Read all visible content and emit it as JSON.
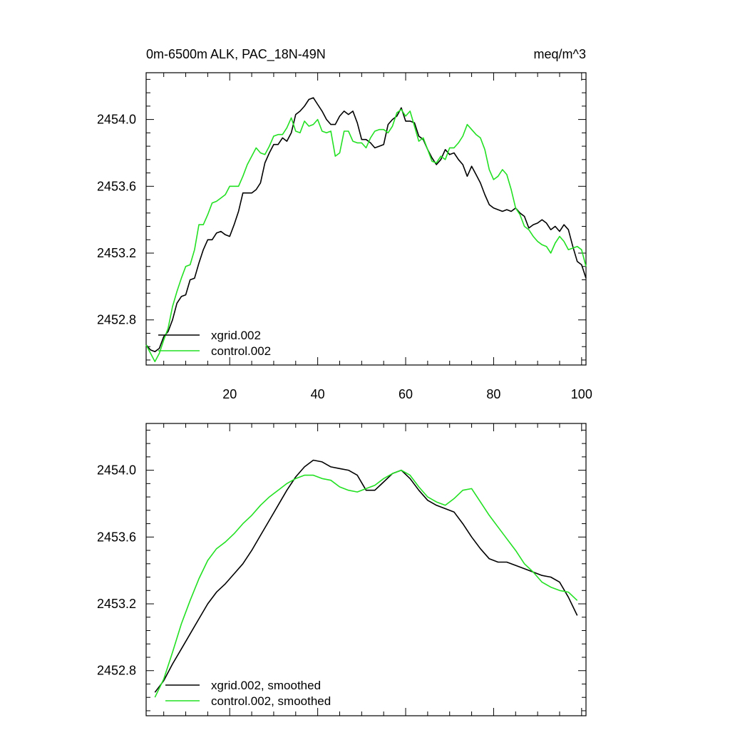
{
  "chart_data": [
    {
      "type": "line",
      "title_left": "0m-6500m ALK, PAC_18N-49N",
      "title_right": "meq/m^3",
      "xlim": [
        1,
        101
      ],
      "ylim": [
        2452.53,
        2454.28
      ],
      "x_ticks": [
        20,
        40,
        60,
        80,
        100
      ],
      "x_tick_labels": [
        "20",
        "40",
        "60",
        "80",
        "100"
      ],
      "y_ticks": [
        2452.8,
        2453.2,
        2453.6,
        2454.0
      ],
      "y_tick_labels": [
        "2452.8",
        "2453.2",
        "2453.6",
        "2454.0"
      ],
      "legend_position": "bottom-left",
      "series": [
        {
          "name": "xgrid.002",
          "color": "#000000",
          "x": [
            1,
            2,
            3,
            4,
            5,
            6,
            7,
            8,
            9,
            10,
            11,
            12,
            13,
            14,
            15,
            16,
            17,
            18,
            19,
            20,
            21,
            22,
            23,
            24,
            25,
            26,
            27,
            28,
            29,
            30,
            31,
            32,
            33,
            34,
            35,
            36,
            37,
            38,
            39,
            40,
            41,
            42,
            43,
            44,
            45,
            46,
            47,
            48,
            49,
            50,
            51,
            52,
            53,
            54,
            55,
            56,
            57,
            58,
            59,
            60,
            61,
            62,
            63,
            64,
            65,
            66,
            67,
            68,
            69,
            70,
            71,
            72,
            73,
            74,
            75,
            76,
            77,
            78,
            79,
            80,
            81,
            82,
            83,
            84,
            85,
            86,
            87,
            88,
            89,
            90,
            91,
            92,
            93,
            94,
            95,
            96,
            97,
            98,
            99,
            100,
            101
          ],
          "y": [
            2452.65,
            2452.62,
            2452.61,
            2452.63,
            2452.7,
            2452.73,
            2452.8,
            2452.9,
            2452.94,
            2452.95,
            2453.04,
            2453.05,
            2453.14,
            2453.22,
            2453.28,
            2453.28,
            2453.32,
            2453.33,
            2453.31,
            2453.3,
            2453.37,
            2453.45,
            2453.56,
            2453.56,
            2453.56,
            2453.58,
            2453.62,
            2453.74,
            2453.8,
            2453.85,
            2453.85,
            2453.89,
            2453.87,
            2453.92,
            2454.03,
            2454.05,
            2454.08,
            2454.12,
            2454.13,
            2454.09,
            2454.05,
            2454.0,
            2453.97,
            2453.97,
            2454.02,
            2454.05,
            2454.03,
            2454.05,
            2453.98,
            2453.88,
            2453.88,
            2453.86,
            2453.83,
            2453.84,
            2453.85,
            2453.97,
            2454.0,
            2454.02,
            2454.07,
            2453.99,
            2453.99,
            2453.98,
            2453.9,
            2453.88,
            2453.82,
            2453.77,
            2453.73,
            2453.76,
            2453.82,
            2453.79,
            2453.8,
            2453.76,
            2453.73,
            2453.66,
            2453.72,
            2453.67,
            2453.62,
            2453.55,
            2453.49,
            2453.47,
            2453.46,
            2453.45,
            2453.46,
            2453.45,
            2453.47,
            2453.44,
            2453.42,
            2453.35,
            2453.37,
            2453.38,
            2453.4,
            2453.38,
            2453.34,
            2453.36,
            2453.33,
            2453.37,
            2453.34,
            2453.24,
            2453.15,
            2453.13,
            2453.05
          ]
        },
        {
          "name": "control.002",
          "color": "#22e022",
          "x": [
            1,
            2,
            3,
            4,
            5,
            6,
            7,
            8,
            9,
            10,
            11,
            12,
            13,
            14,
            15,
            16,
            17,
            18,
            19,
            20,
            21,
            22,
            23,
            24,
            25,
            26,
            27,
            28,
            29,
            30,
            31,
            32,
            33,
            34,
            35,
            36,
            37,
            38,
            39,
            40,
            41,
            42,
            43,
            44,
            45,
            46,
            47,
            48,
            49,
            50,
            51,
            52,
            53,
            54,
            55,
            56,
            57,
            58,
            59,
            60,
            61,
            62,
            63,
            64,
            65,
            66,
            67,
            68,
            69,
            70,
            71,
            72,
            73,
            74,
            75,
            76,
            77,
            78,
            79,
            80,
            81,
            82,
            83,
            84,
            85,
            86,
            87,
            88,
            89,
            90,
            91,
            92,
            93,
            94,
            95,
            96,
            97,
            98,
            99,
            100,
            101
          ],
          "y": [
            2452.65,
            2452.6,
            2452.55,
            2452.6,
            2452.68,
            2452.75,
            2452.88,
            2452.97,
            2453.05,
            2453.12,
            2453.13,
            2453.22,
            2453.37,
            2453.37,
            2453.43,
            2453.5,
            2453.51,
            2453.53,
            2453.55,
            2453.6,
            2453.6,
            2453.6,
            2453.66,
            2453.73,
            2453.78,
            2453.83,
            2453.8,
            2453.79,
            2453.84,
            2453.9,
            2453.91,
            2453.91,
            2453.95,
            2454.01,
            2453.93,
            2453.92,
            2453.99,
            2453.96,
            2453.97,
            2454.0,
            2453.93,
            2453.92,
            2453.93,
            2453.78,
            2453.8,
            2453.93,
            2453.93,
            2453.87,
            2453.86,
            2453.86,
            2453.83,
            2453.89,
            2453.93,
            2453.94,
            2453.94,
            2453.92,
            2453.96,
            2454.04,
            2454.06,
            2454.02,
            2454.05,
            2453.96,
            2453.87,
            2453.89,
            2453.82,
            2453.75,
            2453.74,
            2453.78,
            2453.76,
            2453.83,
            2453.83,
            2453.86,
            2453.9,
            2453.97,
            2453.94,
            2453.91,
            2453.89,
            2453.82,
            2453.7,
            2453.64,
            2453.66,
            2453.7,
            2453.67,
            2453.58,
            2453.47,
            2453.43,
            2453.36,
            2453.34,
            2453.3,
            2453.27,
            2453.25,
            2453.24,
            2453.2,
            2453.26,
            2453.3,
            2453.27,
            2453.22,
            2453.23,
            2453.24,
            2453.22,
            2453.12
          ]
        }
      ]
    },
    {
      "type": "line",
      "xlim": [
        1,
        101
      ],
      "ylim": [
        2452.53,
        2454.28
      ],
      "x_ticks": [
        20,
        40,
        60,
        80,
        100
      ],
      "y_ticks": [
        2452.8,
        2453.2,
        2453.6,
        2454.0
      ],
      "y_tick_labels": [
        "2452.8",
        "2453.2",
        "2453.6",
        "2454.0"
      ],
      "legend_position": "bottom-left",
      "series": [
        {
          "name": "xgrid.002, smoothed",
          "color": "#000000",
          "x": [
            3,
            5,
            7,
            9,
            11,
            13,
            15,
            17,
            19,
            21,
            23,
            25,
            27,
            29,
            31,
            33,
            35,
            37,
            39,
            41,
            43,
            45,
            47,
            49,
            51,
            53,
            55,
            57,
            59,
            61,
            63,
            65,
            67,
            69,
            71,
            73,
            75,
            77,
            79,
            81,
            83,
            85,
            87,
            89,
            91,
            93,
            95,
            97,
            99
          ],
          "y": [
            2452.67,
            2452.74,
            2452.84,
            2452.93,
            2453.02,
            2453.11,
            2453.2,
            2453.27,
            2453.32,
            2453.38,
            2453.44,
            2453.52,
            2453.61,
            2453.7,
            2453.79,
            2453.88,
            2453.96,
            2454.02,
            2454.06,
            2454.05,
            2454.02,
            2454.01,
            2454.0,
            2453.97,
            2453.88,
            2453.88,
            2453.93,
            2453.98,
            2454.0,
            2453.95,
            2453.88,
            2453.82,
            2453.79,
            2453.77,
            2453.75,
            2453.68,
            2453.6,
            2453.53,
            2453.47,
            2453.45,
            2453.45,
            2453.43,
            2453.41,
            2453.39,
            2453.37,
            2453.36,
            2453.33,
            2453.24,
            2453.13
          ]
        },
        {
          "name": "control.002, smoothed",
          "color": "#22e022",
          "x": [
            3,
            5,
            7,
            9,
            11,
            13,
            15,
            17,
            19,
            21,
            23,
            25,
            27,
            29,
            31,
            33,
            35,
            37,
            39,
            41,
            43,
            45,
            47,
            49,
            51,
            53,
            55,
            57,
            59,
            61,
            63,
            65,
            67,
            69,
            71,
            73,
            75,
            77,
            79,
            81,
            83,
            85,
            87,
            89,
            91,
            93,
            95,
            97,
            99
          ],
          "y": [
            2452.64,
            2452.75,
            2452.91,
            2453.08,
            2453.22,
            2453.35,
            2453.46,
            2453.53,
            2453.57,
            2453.62,
            2453.68,
            2453.73,
            2453.79,
            2453.84,
            2453.88,
            2453.92,
            2453.95,
            2453.97,
            2453.97,
            2453.95,
            2453.94,
            2453.9,
            2453.88,
            2453.87,
            2453.89,
            2453.91,
            2453.95,
            2453.98,
            2454.0,
            2453.97,
            2453.9,
            2453.84,
            2453.81,
            2453.79,
            2453.83,
            2453.88,
            2453.89,
            2453.81,
            2453.73,
            2453.66,
            2453.59,
            2453.52,
            2453.44,
            2453.39,
            2453.33,
            2453.3,
            2453.28,
            2453.27,
            2453.22
          ]
        }
      ]
    }
  ]
}
